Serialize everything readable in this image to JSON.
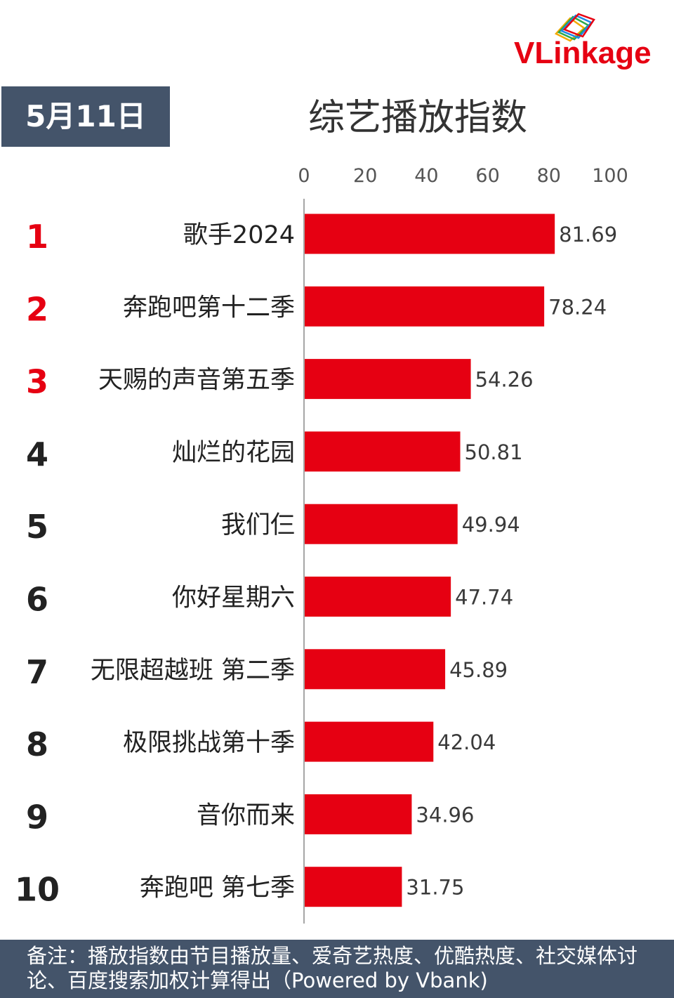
{
  "brand": {
    "logo_text": "VLinkage"
  },
  "header": {
    "date": "5月11日",
    "title": "综艺播放指数"
  },
  "chart_data": {
    "type": "bar",
    "orientation": "horizontal",
    "title": "综艺播放指数",
    "xlim": [
      0,
      100
    ],
    "xticks": [
      0,
      20,
      40,
      60,
      80,
      100
    ],
    "ranks": [
      "1",
      "2",
      "3",
      "4",
      "5",
      "6",
      "7",
      "8",
      "9",
      "10"
    ],
    "categories": [
      "歌手2024",
      "奔跑吧第十二季",
      "天赐的声音第五季",
      "灿烂的花园",
      "我们仨",
      "你好星期六",
      "无限超越班 第二季",
      "极限挑战第十季",
      "音你而来",
      "奔跑吧 第七季"
    ],
    "values": [
      81.69,
      78.24,
      54.26,
      50.81,
      49.94,
      47.74,
      45.89,
      42.04,
      34.96,
      31.75
    ],
    "value_labels": [
      "81.69",
      "78.24",
      "54.26",
      "50.81",
      "49.94",
      "47.74",
      "45.89",
      "42.04",
      "34.96",
      "31.75"
    ],
    "bar_color": "#e60012",
    "top_rank_color": "#e60012",
    "rank_color": "#222222",
    "grid": false,
    "legend": "none"
  },
  "footer": {
    "note": "备注：播放指数由节目播放量、爱奇艺热度、优酷热度、社交媒体讨论、百度搜索加权计算得出（Powered by Vbank)"
  }
}
